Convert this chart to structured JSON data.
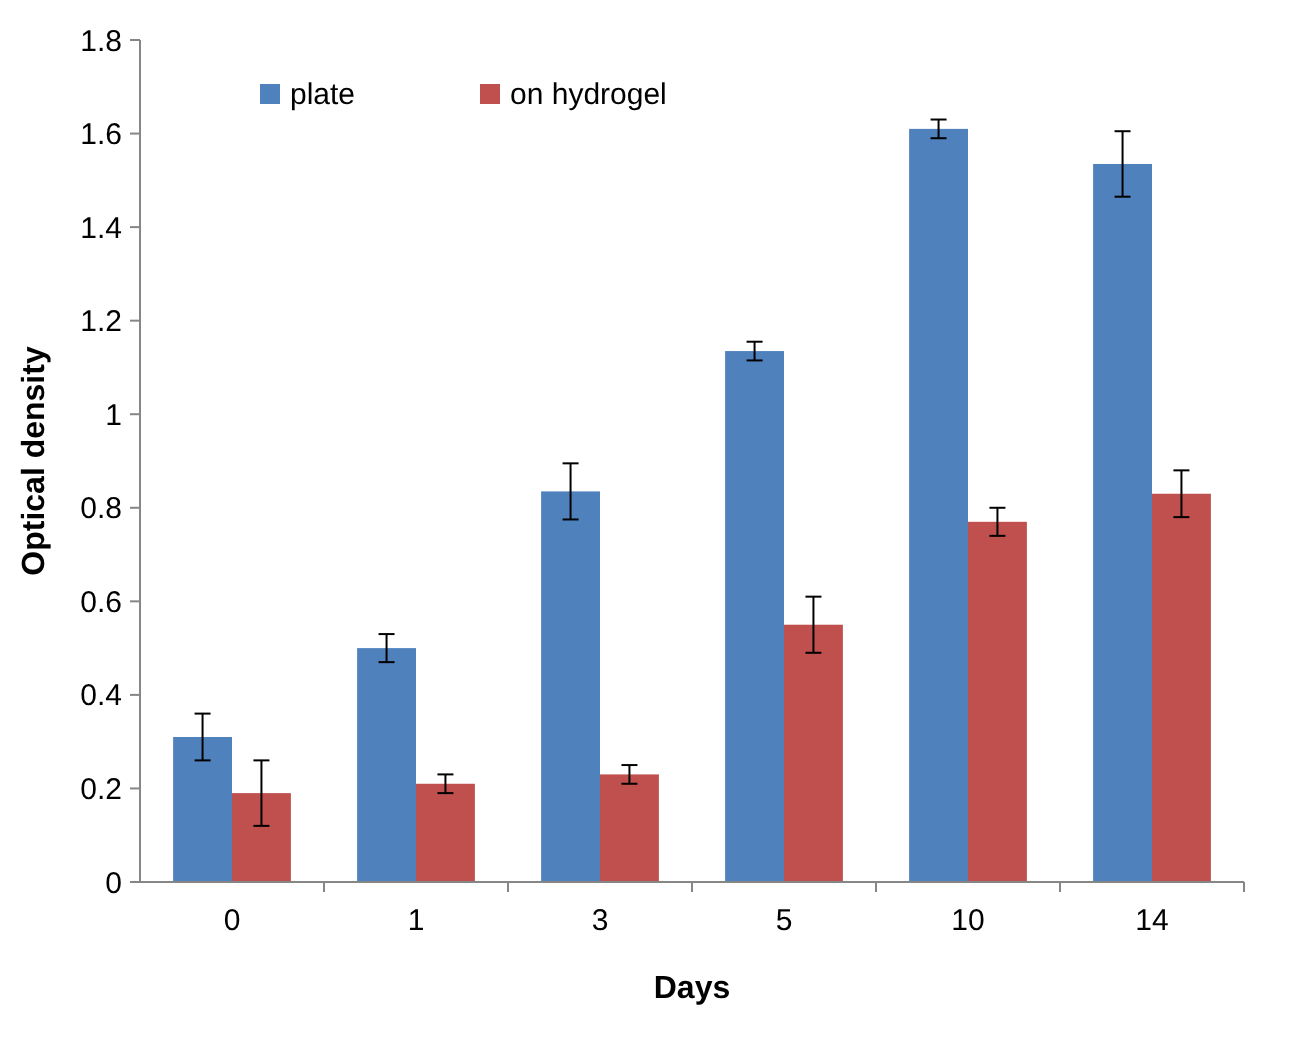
{
  "chart_data": {
    "type": "bar",
    "xlabel": "Days",
    "ylabel": "Optical density",
    "categories": [
      "0",
      "1",
      "3",
      "5",
      "10",
      "14"
    ],
    "series": [
      {
        "name": "plate",
        "color": "#4f81bd",
        "values": [
          0.31,
          0.5,
          0.835,
          1.135,
          1.61,
          1.535
        ],
        "errors": [
          0.05,
          0.03,
          0.06,
          0.02,
          0.02,
          0.07
        ]
      },
      {
        "name": "on hydrogel",
        "color": "#c0504d",
        "values": [
          0.19,
          0.21,
          0.23,
          0.55,
          0.77,
          0.83
        ],
        "errors": [
          0.07,
          0.02,
          0.02,
          0.06,
          0.03,
          0.05
        ]
      }
    ],
    "ylim": [
      0,
      1.8
    ],
    "yticks": [
      0,
      {
        "value": 0.2,
        "label": "0.2"
      },
      {
        "value": 0.4,
        "label": "0.4"
      },
      {
        "value": 0.6,
        "label": "0.6"
      },
      {
        "value": 0.8,
        "label": "0.8"
      },
      1,
      {
        "value": 1.2,
        "label": "1.2"
      },
      {
        "value": 1.4,
        "label": "1.4"
      },
      {
        "value": 1.6,
        "label": "1.6"
      },
      {
        "value": 1.8,
        "label": "1.8"
      }
    ],
    "grid": false,
    "legend": "top left"
  }
}
